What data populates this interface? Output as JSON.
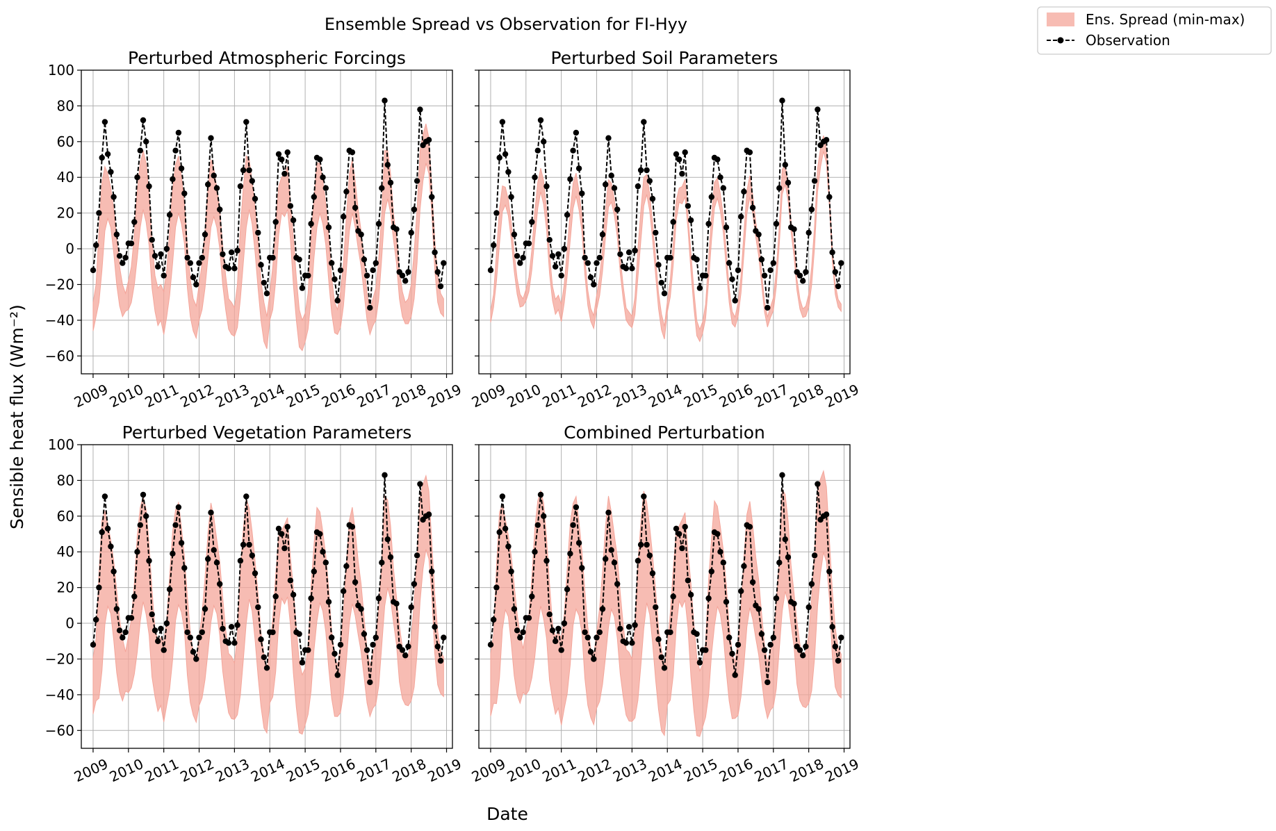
{
  "figure": {
    "suptitle": "Ensemble Spread vs Observation for FI-Hyy",
    "xlabel": "Date",
    "ylabel": "Sensible heat flux (Wm⁻²)",
    "legend": {
      "location": "top-right, outside plots",
      "entries": [
        {
          "label": "Ens. Spread (min-max)",
          "kind": "fill",
          "color": "#f4a59a"
        },
        {
          "label": "Observation",
          "kind": "line-marker",
          "color": "#000000"
        }
      ]
    }
  },
  "chart_data": [
    {
      "type": "area",
      "title": "Perturbed Atmospheric Forcings",
      "xlabel": "",
      "ylabel": "Sensible heat flux (Wm⁻²)",
      "ylim": [
        -70,
        100
      ],
      "xlim": [
        "2008-09",
        "2019-03"
      ],
      "yticks": [
        100,
        80,
        60,
        40,
        20,
        0,
        -20,
        -40,
        -60
      ],
      "xticks": [
        "2009",
        "2010",
        "2011",
        "2012",
        "2013",
        "2014",
        "2015",
        "2016",
        "2017",
        "2018",
        "2019"
      ],
      "grid": true,
      "spread_scale": 1.0,
      "spread_bias": 0
    },
    {
      "type": "area",
      "title": "Perturbed Soil Parameters",
      "xlabel": "",
      "ylabel": "",
      "ylim": [
        -70,
        100
      ],
      "xlim": [
        "2008-09",
        "2019-03"
      ],
      "yticks": [
        100,
        80,
        60,
        40,
        20,
        0,
        -20,
        -40,
        -60
      ],
      "xticks": [
        "2009",
        "2010",
        "2011",
        "2012",
        "2013",
        "2014",
        "2015",
        "2016",
        "2017",
        "2018",
        "2019"
      ],
      "grid": true,
      "spread_scale": 0.4,
      "spread_bias": 0
    },
    {
      "type": "area",
      "title": "Perturbed Vegetation Parameters",
      "xlabel": "",
      "ylabel": "Sensible heat flux (Wm⁻²)",
      "ylim": [
        -70,
        100
      ],
      "xlim": [
        "2008-09",
        "2019-03"
      ],
      "yticks": [
        100,
        80,
        60,
        40,
        20,
        0,
        -20,
        -40,
        -60
      ],
      "xticks": [
        "2009",
        "2010",
        "2011",
        "2012",
        "2013",
        "2014",
        "2015",
        "2016",
        "2017",
        "2018",
        "2019"
      ],
      "grid": true,
      "spread_scale": 1.6,
      "spread_bias": 6
    },
    {
      "type": "area",
      "title": "Combined Perturbation",
      "xlabel": "",
      "ylabel": "",
      "ylim": [
        -70,
        100
      ],
      "xlim": [
        "2008-09",
        "2019-03"
      ],
      "yticks": [
        100,
        80,
        60,
        40,
        20,
        0,
        -20,
        -40,
        -60
      ],
      "xticks": [
        "2009",
        "2010",
        "2011",
        "2012",
        "2013",
        "2014",
        "2015",
        "2016",
        "2017",
        "2018",
        "2019"
      ],
      "grid": true,
      "spread_scale": 1.75,
      "spread_bias": 7
    }
  ],
  "observation_monthly": {
    "start": "2009-01",
    "values": [
      -12,
      2,
      20,
      51,
      71,
      53,
      43,
      29,
      8,
      -4,
      -8,
      -5,
      3,
      3,
      15,
      40,
      55,
      72,
      60,
      35,
      5,
      -4,
      -10,
      -3,
      -15,
      0,
      19,
      39,
      55,
      65,
      45,
      31,
      -5,
      -8,
      -16,
      -20,
      -8,
      -5,
      8,
      36,
      62,
      41,
      34,
      22,
      -3,
      -10,
      -11,
      -2,
      -11,
      -1,
      35,
      44,
      71,
      44,
      38,
      28,
      9,
      -9,
      -19,
      -25,
      -5,
      -5,
      15,
      53,
      50,
      42,
      54,
      24,
      16,
      -5,
      -6,
      -22,
      -15,
      -15,
      14,
      29,
      51,
      50,
      40,
      34,
      12,
      -8,
      -17,
      -29,
      -12,
      18,
      32,
      55,
      54,
      23,
      10,
      8,
      -6,
      -15,
      -33,
      -12,
      -8,
      14,
      34,
      83,
      47,
      37,
      12,
      11,
      -13,
      -15,
      -18,
      -13,
      9,
      22,
      38,
      78,
      58,
      60,
      61,
      29,
      -2,
      -13,
      -21,
      -8
    ]
  },
  "spread_monthly": {
    "start": "2009-01",
    "lower": [
      -46,
      -38,
      -30,
      -12,
      10,
      17,
      12,
      -2,
      -20,
      -32,
      -38,
      -35,
      -34,
      -30,
      -20,
      -5,
      12,
      22,
      15,
      2,
      -22,
      -35,
      -43,
      -40,
      -48,
      -38,
      -26,
      -8,
      12,
      20,
      14,
      3,
      -22,
      -38,
      -46,
      -50,
      -40,
      -34,
      -22,
      -5,
      12,
      18,
      12,
      0,
      -20,
      -34,
      -45,
      -48,
      -49,
      -44,
      -28,
      -8,
      12,
      22,
      14,
      -2,
      -22,
      -40,
      -52,
      -56,
      -40,
      -34,
      -18,
      8,
      20,
      18,
      22,
      5,
      -20,
      -40,
      -55,
      -57,
      -52,
      -45,
      -28,
      -5,
      12,
      20,
      14,
      2,
      -18,
      -36,
      -47,
      -48,
      -44,
      -32,
      -12,
      10,
      20,
      12,
      0,
      -10,
      -25,
      -40,
      -48,
      -43,
      -40,
      -28,
      -5,
      20,
      28,
      20,
      5,
      -8,
      -28,
      -38,
      -42,
      -42,
      -38,
      -28,
      -8,
      22,
      38,
      48,
      42,
      20,
      -12,
      -30,
      -36,
      -38
    ],
    "upper": [
      -30,
      -20,
      10,
      37,
      46,
      42,
      34,
      22,
      5,
      -10,
      -20,
      -25,
      -18,
      -10,
      8,
      32,
      48,
      55,
      48,
      30,
      5,
      -15,
      -22,
      -20,
      -24,
      -12,
      10,
      33,
      47,
      52,
      40,
      25,
      2,
      -17,
      -28,
      -32,
      -20,
      -8,
      10,
      33,
      50,
      45,
      34,
      22,
      2,
      -15,
      -28,
      -30,
      -33,
      -20,
      12,
      34,
      52,
      50,
      38,
      22,
      3,
      -18,
      -30,
      -38,
      -25,
      -10,
      12,
      35,
      40,
      42,
      46,
      25,
      6,
      -16,
      -34,
      -40,
      -36,
      -25,
      5,
      28,
      48,
      48,
      38,
      25,
      6,
      -16,
      -30,
      -34,
      -24,
      -8,
      18,
      42,
      50,
      38,
      22,
      10,
      -8,
      -25,
      -34,
      -28,
      -22,
      -5,
      20,
      55,
      55,
      42,
      20,
      5,
      -12,
      -24,
      -30,
      -28,
      -20,
      -2,
      22,
      55,
      64,
      70,
      62,
      35,
      5,
      -15,
      -25,
      -28
    ]
  }
}
